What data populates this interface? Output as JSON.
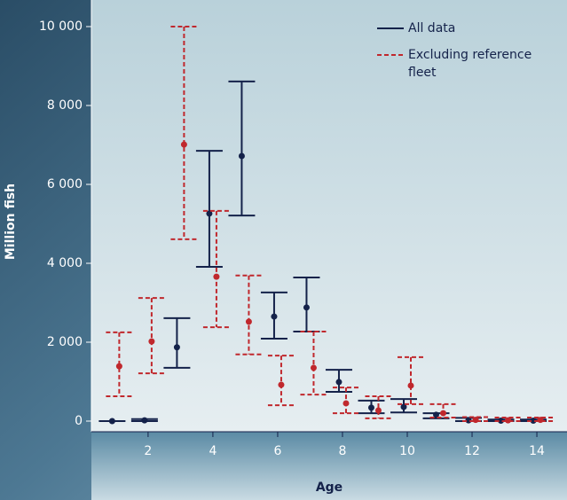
{
  "chart_data": {
    "type": "errorbar",
    "x_label": "Age",
    "y_label": "Million fish",
    "xlim": [
      0.25,
      14.93
    ],
    "ylim": [
      -270,
      10225
    ],
    "xticks": [
      2,
      4,
      6,
      8,
      10,
      12,
      14
    ],
    "yticks": [
      0,
      {
        "value": 2000,
        "label": "2 000"
      },
      {
        "value": 4000,
        "label": "4 000"
      },
      {
        "value": 6000,
        "label": "6 000"
      },
      {
        "value": 8000,
        "label": "8 000"
      },
      {
        "value": 10000,
        "label": "10 000"
      }
    ],
    "x": [
      1,
      2,
      3,
      4,
      5,
      6,
      7,
      8,
      9,
      10,
      11,
      12,
      13,
      14
    ],
    "series": [
      {
        "name": "All data",
        "color": "#14224a",
        "dashed": false,
        "values": [
          0,
          20,
          1870,
          5260,
          6720,
          2650,
          2880,
          990,
          340,
          360,
          160,
          20,
          10,
          10
        ],
        "low": [
          0,
          0,
          1350,
          3910,
          5210,
          2090,
          2270,
          740,
          200,
          220,
          70,
          0,
          0,
          0
        ],
        "high": [
          0,
          50,
          2610,
          6850,
          8610,
          3260,
          3640,
          1300,
          520,
          560,
          200,
          80,
          40,
          40
        ]
      },
      {
        "name": "Excluding reference fleet",
        "color": "#c0282d",
        "dashed": true,
        "values": [
          1390,
          2020,
          7010,
          3660,
          2520,
          920,
          1350,
          450,
          270,
          900,
          200,
          30,
          20,
          30
        ],
        "low": [
          630,
          1210,
          4610,
          2380,
          1690,
          400,
          670,
          200,
          70,
          430,
          90,
          0,
          0,
          0
        ],
        "high": [
          2250,
          3120,
          10000,
          5330,
          3690,
          1660,
          2270,
          850,
          630,
          1620,
          430,
          100,
          90,
          90
        ]
      }
    ]
  }
}
